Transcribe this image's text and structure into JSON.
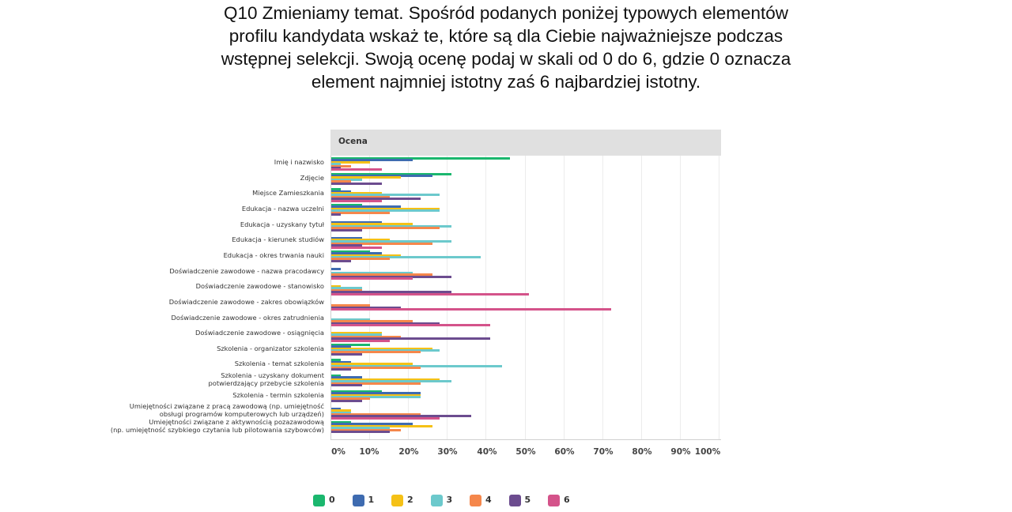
{
  "title": "Q10 Zmieniamy temat. Spośród podanych poniżej typowych elementów profilu kandydata wskaż te, które są dla Ciebie najważniejsze podczas wstępnej selekcji. Swoją ocenę podaj w skali od 0 do 6, gdzie 0 oznacza element najmniej istotny zaś 6 najbardziej istotny.",
  "title_lines": [
    "Q10 Zmieniamy temat. Spośród podanych poniżej typowych elementów",
    "profilu kandydata wskaż te, które są dla Ciebie najważniejsze podczas",
    "wstępnej selekcji. Swoją ocenę podaj w skali od 0 do 6, gdzie 0 oznacza",
    "element najmniej istotny zaś 6 najbardziej istotny."
  ],
  "plot_header": "Ocena",
  "x_ticks": [
    "0%",
    "10%",
    "20%",
    "30%",
    "40%",
    "50%",
    "60%",
    "70%",
    "80%",
    "90%",
    "100%"
  ],
  "legend": [
    {
      "label": "0",
      "color": "#1bb76e"
    },
    {
      "label": "1",
      "color": "#3e6bb0"
    },
    {
      "label": "2",
      "color": "#f5c116"
    },
    {
      "label": "3",
      "color": "#6cc9cc"
    },
    {
      "label": "4",
      "color": "#f5874b"
    },
    {
      "label": "5",
      "color": "#6c4c8f"
    },
    {
      "label": "6",
      "color": "#d4538a"
    }
  ],
  "chart_data": {
    "type": "bar",
    "orientation": "horizontal",
    "title": "Q10 Zmieniamy temat. Spośród podanych poniżej typowych elementów profilu kandydata wskaż te, które są dla Ciebie najważniejsze podczas wstępnej selekcji. Swoją ocenę podaj w skali od 0 do 6, gdzie 0 oznacza element najmniej istotny zaś 6 najbardziej istotny.",
    "subtitle": "Ocena",
    "xlabel": "",
    "ylabel": "",
    "xlim": [
      0,
      100
    ],
    "x_unit": "%",
    "grid": true,
    "legend_position": "bottom",
    "categories": [
      "Imię i nazwisko",
      "Zdjęcie",
      "Miejsce Zamieszkania",
      "Edukacja - nazwa uczelni",
      "Edukacja - uzyskany tytuł",
      "Edukacja - kierunek studiów",
      "Edukacja - okres trwania nauki",
      "Doświadczenie zawodowe - nazwa pracodawcy",
      "Doświadczenie zawodowe - stanowisko",
      "Doświadczenie zawodowe - zakres obowiązków",
      "Doświadczenie zawodowe - okres zatrudnienia",
      "Doświadczenie zawodowe - osiągnięcia",
      "Szkolenia - organizator szkolenia",
      "Szkolenia - temat szkolenia",
      "Szkolenia - uzyskany dokument potwierdzający przebycie szkolenia",
      "Szkolenia - termin szkolenia",
      "Umiejętności związane z pracą zawodową (np. umiejętność obsługi programów komputerowych lub urządzeń)",
      "Umiejętności związane z aktywnością pozazawodową (np. umiejętność szybkiego czytania lub pilotowania szybowców)"
    ],
    "series": [
      {
        "name": "0",
        "color": "#1bb76e",
        "values": [
          46,
          31,
          2.5,
          8,
          0,
          0,
          10,
          0,
          0,
          0,
          0,
          0,
          10,
          2.5,
          2.5,
          13,
          0,
          5
        ]
      },
      {
        "name": "1",
        "color": "#3e6bb0",
        "values": [
          21,
          26,
          5,
          18,
          13,
          8,
          13,
          2.5,
          0,
          0,
          0,
          0,
          5,
          5,
          8,
          23,
          2.5,
          21
        ]
      },
      {
        "name": "2",
        "color": "#f5c116",
        "values": [
          10,
          18,
          13,
          28,
          21,
          15,
          18,
          0,
          2.5,
          0,
          0,
          13,
          26,
          21,
          28,
          23,
          5,
          26
        ]
      },
      {
        "name": "3",
        "color": "#6cc9cc",
        "values": [
          2.5,
          8,
          28,
          28,
          31,
          31,
          38.5,
          21,
          8,
          0,
          10,
          13,
          28,
          44,
          31,
          23,
          5,
          15
        ]
      },
      {
        "name": "4",
        "color": "#f5874b",
        "values": [
          5,
          5,
          15,
          15,
          28,
          26,
          15,
          26,
          8,
          10,
          21,
          18,
          23,
          23,
          23,
          10,
          23,
          18
        ]
      },
      {
        "name": "5",
        "color": "#6c4c8f",
        "values": [
          2.5,
          13,
          23,
          2.5,
          8,
          8,
          5,
          31,
          31,
          18,
          28,
          41,
          8,
          5,
          8,
          8,
          36,
          15
        ]
      },
      {
        "name": "6",
        "color": "#d4538a",
        "values": [
          13,
          0,
          13,
          0,
          0,
          13,
          0,
          21,
          51,
          72,
          41,
          15,
          0,
          0,
          0,
          0,
          28,
          0
        ]
      }
    ]
  },
  "row_labels": [
    {
      "lines": [
        "Imię i nazwisko"
      ]
    },
    {
      "lines": [
        "Zdjęcie"
      ]
    },
    {
      "lines": [
        "Miejsce Zamieszkania"
      ]
    },
    {
      "lines": [
        "Edukacja - nazwa uczelni"
      ]
    },
    {
      "lines": [
        "Edukacja - uzyskany tytuł"
      ]
    },
    {
      "lines": [
        "Edukacja - kierunek studiów"
      ]
    },
    {
      "lines": [
        "Edukacja - okres trwania nauki"
      ]
    },
    {
      "lines": [
        "Doświadczenie zawodowe - nazwa pracodawcy"
      ]
    },
    {
      "lines": [
        "Doświadczenie zawodowe - stanowisko"
      ]
    },
    {
      "lines": [
        "Doświadczenie zawodowe - zakres obowiązków"
      ]
    },
    {
      "lines": [
        "Doświadczenie zawodowe - okres zatrudnienia"
      ]
    },
    {
      "lines": [
        "Doświadczenie zawodowe - osiągnięcia"
      ]
    },
    {
      "lines": [
        "Szkolenia - organizator szkolenia"
      ]
    },
    {
      "lines": [
        "Szkolenia - temat szkolenia"
      ]
    },
    {
      "lines": [
        "Szkolenia - uzyskany dokument",
        "potwierdzający przebycie szkolenia"
      ]
    },
    {
      "lines": [
        "Szkolenia - termin szkolenia"
      ]
    },
    {
      "lines": [
        "Umiejętności związane z pracą zawodową (np. umiejętność",
        "obsługi programów komputerowych lub urządzeń)"
      ]
    },
    {
      "lines": [
        "Umiejętności związane z aktywnością pozazawodową",
        "(np. umiejętność szybkiego czytania lub pilotowania szybowców)"
      ]
    }
  ]
}
